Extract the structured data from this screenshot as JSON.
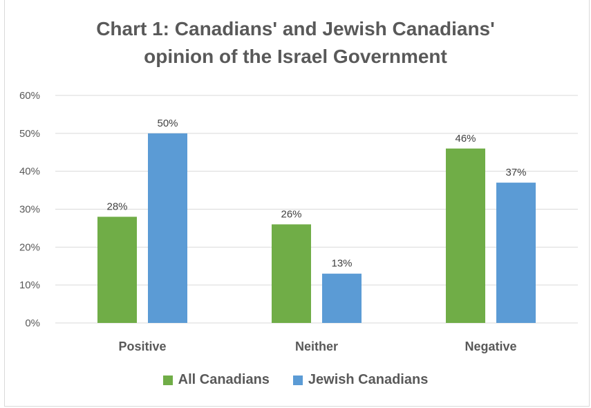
{
  "chart_data": {
    "type": "bar",
    "title_line1": "Chart 1: Canadians' and Jewish Canadians'",
    "title_line2": "opinion of the Israel Government",
    "categories": [
      "Positive",
      "Neither",
      "Negative"
    ],
    "series": [
      {
        "name": "All Canadians",
        "color": "#70ad47",
        "values": [
          28,
          26,
          46
        ],
        "labels": [
          "28%",
          "26%",
          "46%"
        ]
      },
      {
        "name": "Jewish Canadians",
        "color": "#5b9bd5",
        "values": [
          50,
          13,
          37
        ],
        "labels": [
          "50%",
          "13%",
          "37%"
        ]
      }
    ],
    "yticks": [
      "0%",
      "10%",
      "20%",
      "30%",
      "40%",
      "50%",
      "60%"
    ],
    "ylim": [
      0,
      60
    ],
    "grid": true,
    "legend_position": "bottom"
  }
}
